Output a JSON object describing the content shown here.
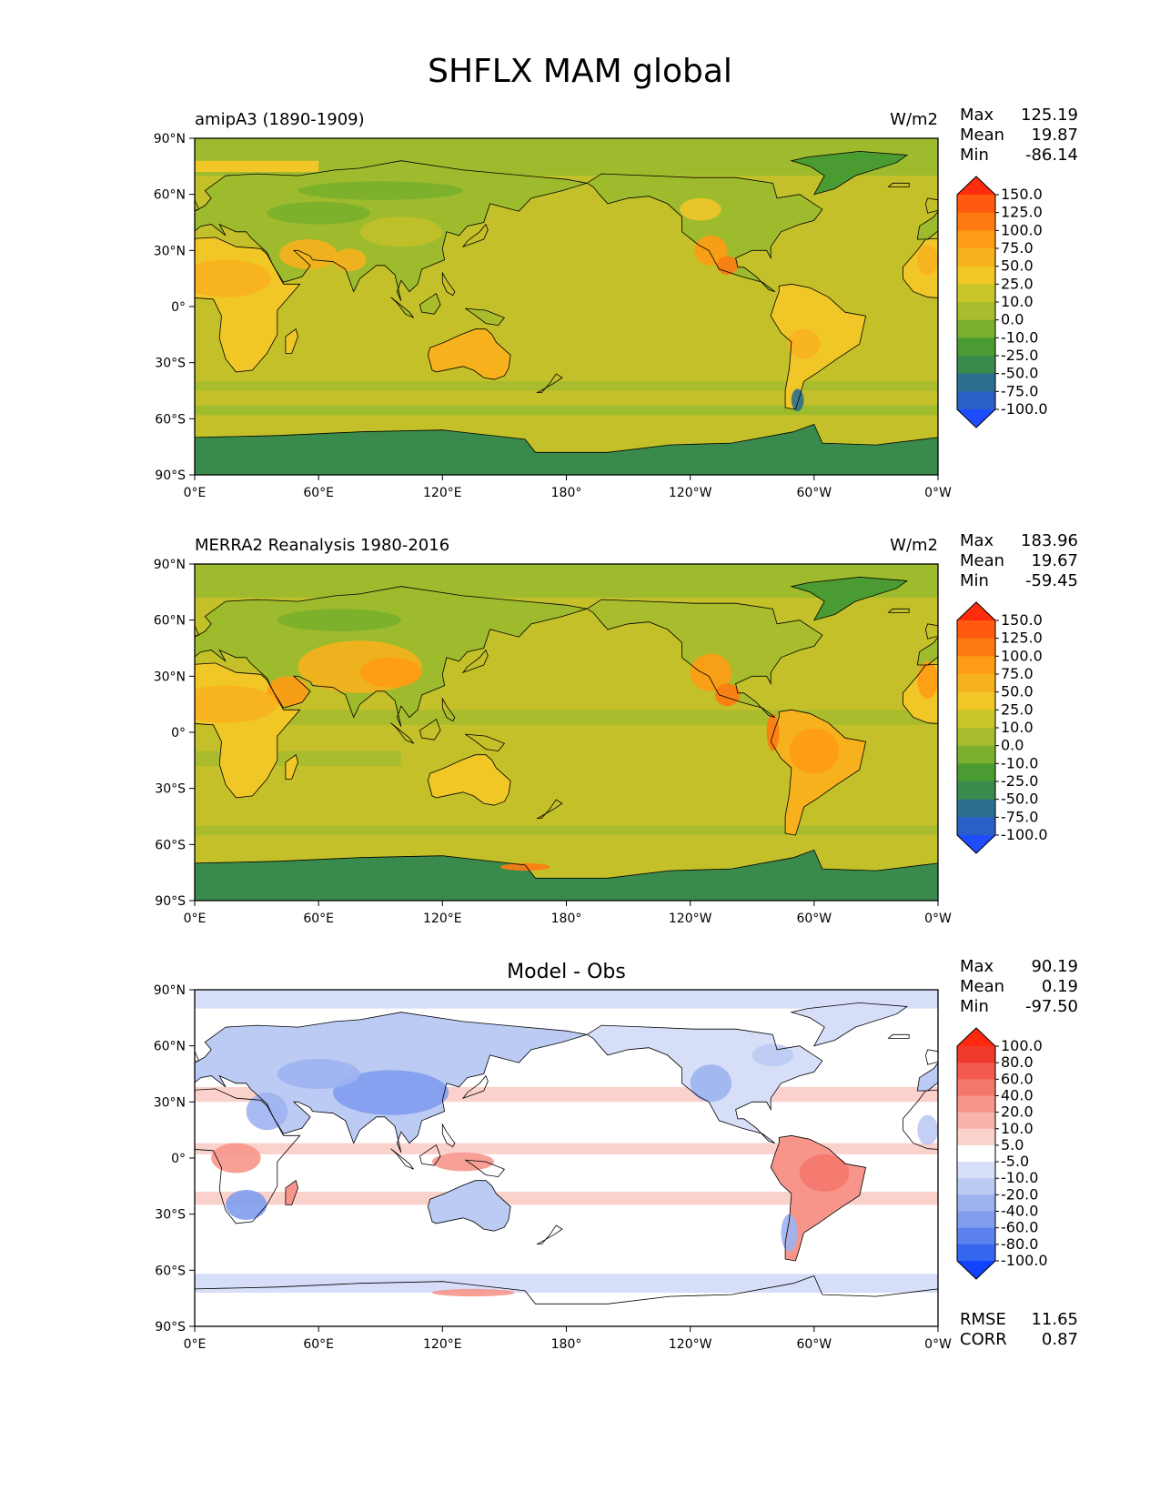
{
  "title": "SHFLX MAM global",
  "axes": {
    "y_ticks": [
      "90°N",
      "60°N",
      "30°N",
      "0°",
      "30°S",
      "60°S",
      "90°S"
    ],
    "x_ticks": [
      "0°E",
      "60°E",
      "120°E",
      "180°",
      "120°W",
      "60°W",
      "0°W"
    ]
  },
  "panels": [
    {
      "title_left": "amipA3 (1890-1909)",
      "title_right": "W/m2",
      "title_center": "",
      "stats": [
        {
          "label": "Max",
          "value": "125.19"
        },
        {
          "label": "Mean",
          "value": "19.87"
        },
        {
          "label": "Min",
          "value": "-86.14"
        }
      ],
      "footer_stats": [],
      "colorbar": {
        "labels": [
          "150.0",
          "125.0",
          "100.0",
          "75.0",
          "50.0",
          "25.0",
          "10.0",
          "0.0",
          "-10.0",
          "-25.0",
          "-50.0",
          "-75.0",
          "-100.0"
        ],
        "colors": [
          "#ff2d0d",
          "#ff5a10",
          "#ff7a12",
          "#ff9b14",
          "#f7b11d",
          "#f1c728",
          "#c8c62a",
          "#a9bc2d",
          "#7ab02c",
          "#4a9b32",
          "#3a8a4d",
          "#2c7090",
          "#2a5fc6",
          "#1e4dff"
        ]
      }
    },
    {
      "title_left": "MERRA2 Reanalysis 1980-2016",
      "title_right": "W/m2",
      "title_center": "",
      "stats": [
        {
          "label": "Max",
          "value": "183.96"
        },
        {
          "label": "Mean",
          "value": "19.67"
        },
        {
          "label": "Min",
          "value": "-59.45"
        }
      ],
      "footer_stats": [],
      "colorbar": {
        "labels": [
          "150.0",
          "125.0",
          "100.0",
          "75.0",
          "50.0",
          "25.0",
          "10.0",
          "0.0",
          "-10.0",
          "-25.0",
          "-50.0",
          "-75.0",
          "-100.0"
        ],
        "colors": [
          "#ff2d0d",
          "#ff5a10",
          "#ff7a12",
          "#ff9b14",
          "#f7b11d",
          "#f1c728",
          "#c8c62a",
          "#a9bc2d",
          "#7ab02c",
          "#4a9b32",
          "#3a8a4d",
          "#2c7090",
          "#2a5fc6",
          "#1e4dff"
        ]
      }
    },
    {
      "title_left": "",
      "title_right": "",
      "title_center": "Model - Obs",
      "stats": [
        {
          "label": "Max",
          "value": "90.19"
        },
        {
          "label": "Mean",
          "value": "0.19"
        },
        {
          "label": "Min",
          "value": "-97.50"
        }
      ],
      "footer_stats": [
        {
          "label": "RMSE",
          "value": "11.65"
        },
        {
          "label": "CORR",
          "value": "0.87"
        }
      ],
      "colorbar": {
        "labels": [
          "100.0",
          "80.0",
          "60.0",
          "40.0",
          "20.0",
          "10.0",
          "5.0",
          "-5.0",
          "-10.0",
          "-20.0",
          "-40.0",
          "-60.0",
          "-80.0",
          "-100.0"
        ],
        "colors": [
          "#ff2a0e",
          "#ee3a2a",
          "#f25a4e",
          "#f4776c",
          "#f7958b",
          "#f9b2aa",
          "#fbd1cc",
          "#ffffff",
          "#d6def8",
          "#bccbf3",
          "#9db3ef",
          "#7f9cee",
          "#5c82ee",
          "#3466ef",
          "#1142ff"
        ]
      }
    }
  ],
  "chart_data": [
    {
      "type": "heatmap",
      "title": "amipA3 (1890-1909)",
      "units": "W/m2",
      "variable": "SHFLX",
      "season": "MAM",
      "xlabel": "",
      "ylabel": "",
      "x_range": [
        0,
        360
      ],
      "y_range": [
        -90,
        90
      ],
      "levels": [
        -100,
        -75,
        -50,
        -25,
        -10,
        0,
        10,
        25,
        50,
        75,
        100,
        125,
        150
      ],
      "max": 125.19,
      "mean": 19.87,
      "min": -86.14
    },
    {
      "type": "heatmap",
      "title": "MERRA2 Reanalysis 1980-2016",
      "units": "W/m2",
      "variable": "SHFLX",
      "season": "MAM",
      "xlabel": "",
      "ylabel": "",
      "x_range": [
        0,
        360
      ],
      "y_range": [
        -90,
        90
      ],
      "levels": [
        -100,
        -75,
        -50,
        -25,
        -10,
        0,
        10,
        25,
        50,
        75,
        100,
        125,
        150
      ],
      "max": 183.96,
      "mean": 19.67,
      "min": -59.45
    },
    {
      "type": "heatmap",
      "title": "Model - Obs",
      "units": "W/m2",
      "xlabel": "",
      "ylabel": "",
      "x_range": [
        0,
        360
      ],
      "y_range": [
        -90,
        90
      ],
      "levels": [
        -100,
        -80,
        -60,
        -40,
        -20,
        -10,
        -5,
        5,
        10,
        20,
        40,
        60,
        80,
        100
      ],
      "max": 90.19,
      "mean": 0.19,
      "min": -97.5,
      "rmse": 11.65,
      "corr": 0.87
    }
  ]
}
